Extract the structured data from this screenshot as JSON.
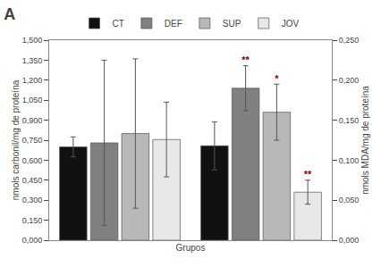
{
  "chart_data": {
    "type": "bar",
    "title": "A",
    "xlabel": "Grupos",
    "ylabel": "nmols carbonil/mg de proteína",
    "y2label": "nmols MDA/mg de proteína",
    "categories": [
      null,
      null
    ],
    "series": [
      {
        "name": "CT",
        "color": "#111111",
        "axis": "y",
        "values": [
          0.7,
          null
        ],
        "errors": [
          0.075,
          null
        ]
      },
      {
        "name": "DEF",
        "color": "#808080",
        "axis": "y",
        "values": [
          0.73,
          null
        ],
        "errors": [
          0.62,
          null
        ]
      },
      {
        "name": "SUP",
        "color": "#b8b8b8",
        "axis": "y",
        "values": [
          0.8,
          null
        ],
        "errors": [
          0.56,
          null
        ]
      },
      {
        "name": "JOV",
        "color": "#e8e8e8",
        "axis": "y",
        "values": [
          0.755,
          null
        ],
        "errors": [
          0.28,
          null
        ]
      },
      {
        "name": "CT",
        "color": "#111111",
        "axis": "y2",
        "values": [
          null,
          0.118
        ],
        "errors": [
          null,
          0.03
        ]
      },
      {
        "name": "DEF",
        "color": "#808080",
        "axis": "y2",
        "values": [
          null,
          0.19
        ],
        "errors": [
          null,
          0.028
        ],
        "annotation": {
          "text": "**",
          "color": "#8B0000"
        }
      },
      {
        "name": "SUP",
        "color": "#b8b8b8",
        "axis": "y2",
        "values": [
          null,
          0.16
        ],
        "errors": [
          null,
          0.035
        ],
        "annotation": {
          "text": "*",
          "color": "#8B0000"
        }
      },
      {
        "name": "JOV",
        "color": "#e8e8e8",
        "axis": "y2",
        "values": [
          null,
          0.06
        ],
        "errors": [
          null,
          0.015
        ],
        "annotation": {
          "text": "**",
          "color": "#8B0000"
        }
      }
    ],
    "ylim": [
      0.0,
      1.5
    ],
    "yticks": [
      {
        "value": 0.0,
        "label": "0,000"
      },
      {
        "value": 0.15,
        "label": "0,150"
      },
      {
        "value": 0.3,
        "label": "0,300"
      },
      {
        "value": 0.45,
        "label": "0,450"
      },
      {
        "value": 0.6,
        "label": "0,600"
      },
      {
        "value": 0.75,
        "label": "0,750"
      },
      {
        "value": 0.9,
        "label": "0,900"
      },
      {
        "value": 1.05,
        "label": "1,050"
      },
      {
        "value": 1.2,
        "label": "1,200"
      },
      {
        "value": 1.35,
        "label": "1,350"
      },
      {
        "value": 1.5,
        "label": "1,500"
      }
    ],
    "y2lim": [
      0.0,
      0.25
    ],
    "y2ticks": [
      {
        "value": 0.0,
        "label": "0,000"
      },
      {
        "value": 0.05,
        "label": "0,050"
      },
      {
        "value": 0.1,
        "label": "0,100"
      },
      {
        "value": 0.15,
        "label": "0,150"
      },
      {
        "value": 0.2,
        "label": "0,200"
      },
      {
        "value": 0.25,
        "label": "0,250"
      }
    ],
    "grid": false,
    "legend": "top"
  }
}
